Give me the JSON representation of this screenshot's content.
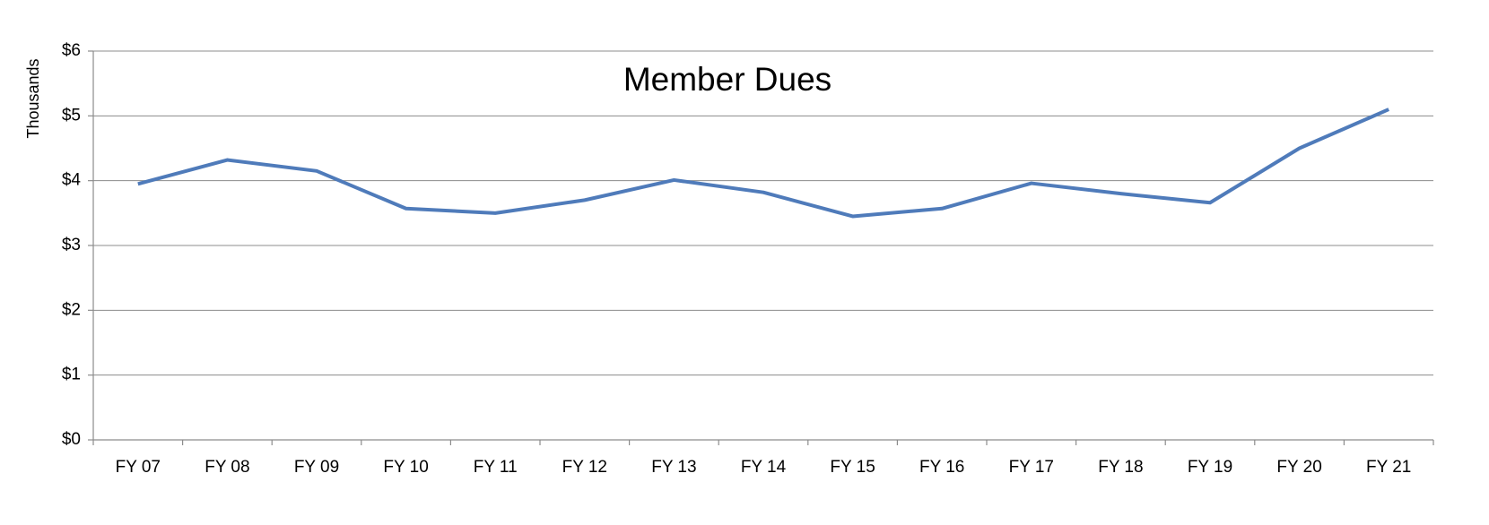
{
  "chart_data": {
    "type": "line",
    "title": "Member Dues",
    "y_label": "Thousands",
    "categories": [
      "FY 07",
      "FY 08",
      "FY 09",
      "FY 10",
      "FY 11",
      "FY 12",
      "FY 13",
      "FY 14",
      "FY 15",
      "FY 16",
      "FY 17",
      "FY 18",
      "FY 19",
      "FY 20",
      "FY 21"
    ],
    "series": [
      {
        "name": "Member Dues",
        "color": "#4f7bba",
        "values": [
          3.95,
          4.32,
          4.15,
          3.57,
          3.5,
          3.7,
          4.01,
          3.82,
          3.45,
          3.57,
          3.96,
          3.8,
          3.66,
          4.5,
          5.1
        ]
      }
    ],
    "ylim": [
      0,
      6
    ],
    "yticks": [
      {
        "value": 0,
        "label": "$0"
      },
      {
        "value": 1,
        "label": "$1"
      },
      {
        "value": 2,
        "label": "$2"
      },
      {
        "value": 3,
        "label": "$3"
      },
      {
        "value": 4,
        "label": "$4"
      },
      {
        "value": 5,
        "label": "$5"
      },
      {
        "value": 6,
        "label": "$6"
      }
    ],
    "grid": true
  }
}
